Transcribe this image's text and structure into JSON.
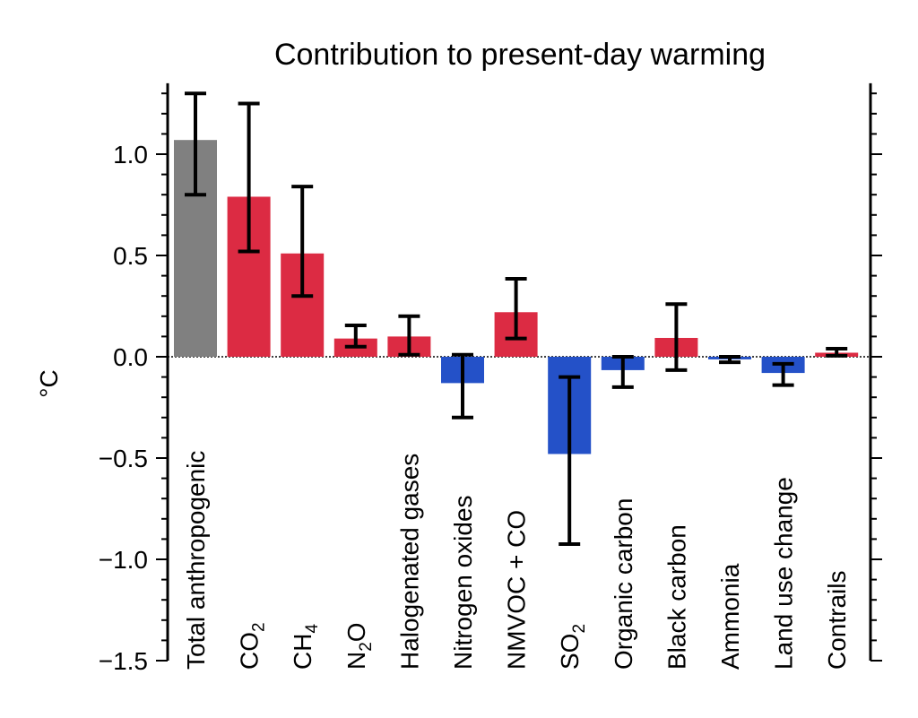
{
  "chart_data": {
    "type": "bar",
    "title": "Contribution to present-day warming",
    "xlabel": "",
    "ylabel": "°C",
    "ylim": [
      -1.5,
      1.35
    ],
    "yticks": [
      -1.5,
      -1.0,
      -0.5,
      0.0,
      0.5,
      1.0
    ],
    "ytick_labels": [
      "−1.5",
      "−1.0",
      "−0.5",
      "0.0",
      "0.5",
      "1.0"
    ],
    "grid": false,
    "colors": {
      "total": "#808080",
      "warming": "#dc2b43",
      "cooling": "#2451c8"
    },
    "categories": [
      {
        "label": "Total anthropogenic",
        "sub": "",
        "value": 1.07,
        "err_low": 0.8,
        "err_high": 1.3,
        "kind": "total"
      },
      {
        "label": "CO",
        "sub": "2",
        "value": 0.79,
        "err_low": 0.52,
        "err_high": 1.25,
        "kind": "warming"
      },
      {
        "label": "CH",
        "sub": "4",
        "value": 0.51,
        "err_low": 0.3,
        "err_high": 0.84,
        "kind": "warming"
      },
      {
        "label": "N",
        "sub": "2",
        "suffix": "O",
        "value": 0.09,
        "err_low": 0.05,
        "err_high": 0.155,
        "kind": "warming"
      },
      {
        "label": "Halogenated gases",
        "sub": "",
        "value": 0.1,
        "err_low": 0.01,
        "err_high": 0.2,
        "kind": "warming"
      },
      {
        "label": "Nitrogen oxides",
        "sub": "",
        "value": -0.13,
        "err_low": -0.3,
        "err_high": 0.01,
        "kind": "cooling"
      },
      {
        "label": "NMVOC + CO",
        "sub": "",
        "value": 0.22,
        "err_low": 0.09,
        "err_high": 0.385,
        "kind": "warming"
      },
      {
        "label": "SO",
        "sub": "2",
        "value": -0.48,
        "err_low": -0.925,
        "err_high": -0.1,
        "kind": "cooling"
      },
      {
        "label": "Organic carbon",
        "sub": "",
        "value": -0.066,
        "err_low": -0.15,
        "err_high": 0.0,
        "kind": "cooling"
      },
      {
        "label": "Black carbon",
        "sub": "",
        "value": 0.093,
        "err_low": -0.066,
        "err_high": 0.26,
        "kind": "warming"
      },
      {
        "label": "Ammonia",
        "sub": "",
        "value": -0.013,
        "err_low": -0.027,
        "err_high": 0.0,
        "kind": "cooling"
      },
      {
        "label": "Land use change",
        "sub": "",
        "value": -0.08,
        "err_low": -0.14,
        "err_high": -0.035,
        "kind": "cooling"
      },
      {
        "label": "Contrails",
        "sub": "",
        "value": 0.02,
        "err_low": 0.005,
        "err_high": 0.04,
        "kind": "warming"
      }
    ]
  }
}
